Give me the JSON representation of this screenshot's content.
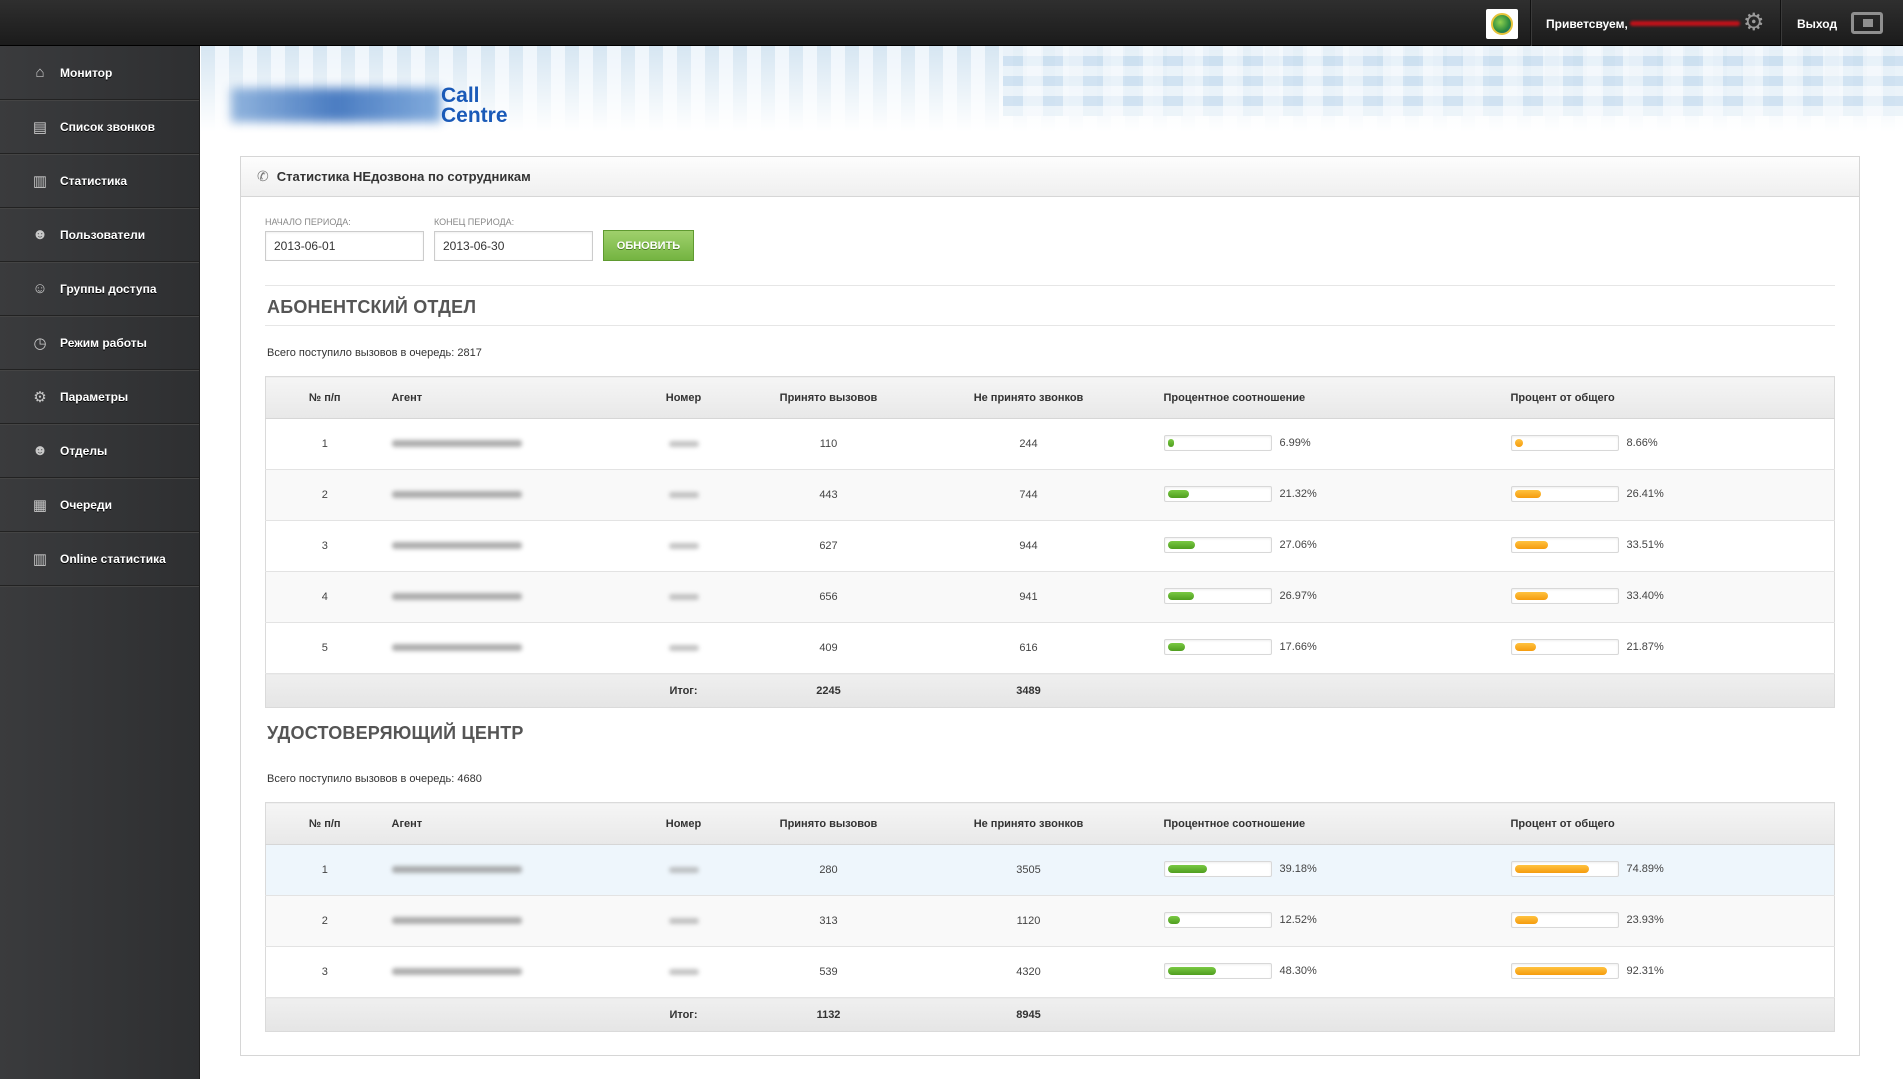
{
  "topbar": {
    "greeting": "Приветсвуем,",
    "logout_label": "Выход"
  },
  "sidebar": {
    "items": [
      {
        "label": "Монитор",
        "icon": "home-icon"
      },
      {
        "label": "Список звонков",
        "icon": "document-icon"
      },
      {
        "label": "Статистика",
        "icon": "bar-chart-icon"
      },
      {
        "label": "Пользователи",
        "icon": "users-icon"
      },
      {
        "label": "Группы доступа",
        "icon": "group-icon"
      },
      {
        "label": "Режим работы",
        "icon": "clock-icon"
      },
      {
        "label": "Параметры",
        "icon": "gear-icon"
      },
      {
        "label": "Отделы",
        "icon": "department-icon"
      },
      {
        "label": "Очереди",
        "icon": "table-icon"
      },
      {
        "label": "Online статистика",
        "icon": "bar-chart-icon"
      }
    ]
  },
  "brand": {
    "line1": "Call",
    "line2": "Centre"
  },
  "panel": {
    "title": "Статистика НЕдозвона по сотрудникам"
  },
  "filters": {
    "start_label": "НАЧАЛО ПЕРИОДА:",
    "start_value": "2013-06-01",
    "end_label": "КОНЕЦ ПЕРИОДА:",
    "end_value": "2013-06-30",
    "update_label": "ОБНОВИТЬ"
  },
  "columns": {
    "num": "№ п/п",
    "agent": "Агент",
    "phone": "Номер",
    "accepted": "Принято вызовов",
    "missed": "Не принято звонков",
    "ratio": "Процентное соотношение",
    "pct_total": "Процент от общего"
  },
  "departments": [
    {
      "title": "АБОНЕНТСКИЙ ОТДЕЛ",
      "total_text": "Всего поступило вызовов в очередь: 2817",
      "rows": [
        {
          "num": "1",
          "accepted": "110",
          "missed": "244",
          "ratio": "6.99%",
          "ratio_value": 0.0699,
          "pct": "8.66%",
          "pct_value": 0.0866
        },
        {
          "num": "2",
          "accepted": "443",
          "missed": "744",
          "ratio": "21.32%",
          "ratio_value": 0.2132,
          "pct": "26.41%",
          "pct_value": 0.2641
        },
        {
          "num": "3",
          "accepted": "627",
          "missed": "944",
          "ratio": "27.06%",
          "ratio_value": 0.2706,
          "pct": "33.51%",
          "pct_value": 0.3351
        },
        {
          "num": "4",
          "accepted": "656",
          "missed": "941",
          "ratio": "26.97%",
          "ratio_value": 0.2697,
          "pct": "33.40%",
          "pct_value": 0.334
        },
        {
          "num": "5",
          "accepted": "409",
          "missed": "616",
          "ratio": "17.66%",
          "ratio_value": 0.1766,
          "pct": "21.87%",
          "pct_value": 0.2187
        }
      ],
      "total_label": "Итог:",
      "total_accepted": "2245",
      "total_missed": "3489"
    },
    {
      "title": "УДОСТОВЕРЯЮЩИЙ ЦЕНТР",
      "total_text": "Всего поступило вызовов в очередь: 4680",
      "rows": [
        {
          "num": "1",
          "accepted": "280",
          "missed": "3505",
          "ratio": "39.18%",
          "ratio_value": 0.3918,
          "pct": "74.89%",
          "pct_value": 0.7489
        },
        {
          "num": "2",
          "accepted": "313",
          "missed": "1120",
          "ratio": "12.52%",
          "ratio_value": 0.1252,
          "pct": "23.93%",
          "pct_value": 0.2393
        },
        {
          "num": "3",
          "accepted": "539",
          "missed": "4320",
          "ratio": "48.30%",
          "ratio_value": 0.483,
          "pct": "92.31%",
          "pct_value": 0.9231
        }
      ],
      "total_label": "Итог:",
      "total_accepted": "1132",
      "total_missed": "8945"
    }
  ],
  "colors": {
    "accent_green": "#74b441",
    "bar_green": "#5aa928",
    "bar_orange": "#f7a51c",
    "brand_blue": "#1a5ab8",
    "sidebar_bg": "#35363a"
  }
}
